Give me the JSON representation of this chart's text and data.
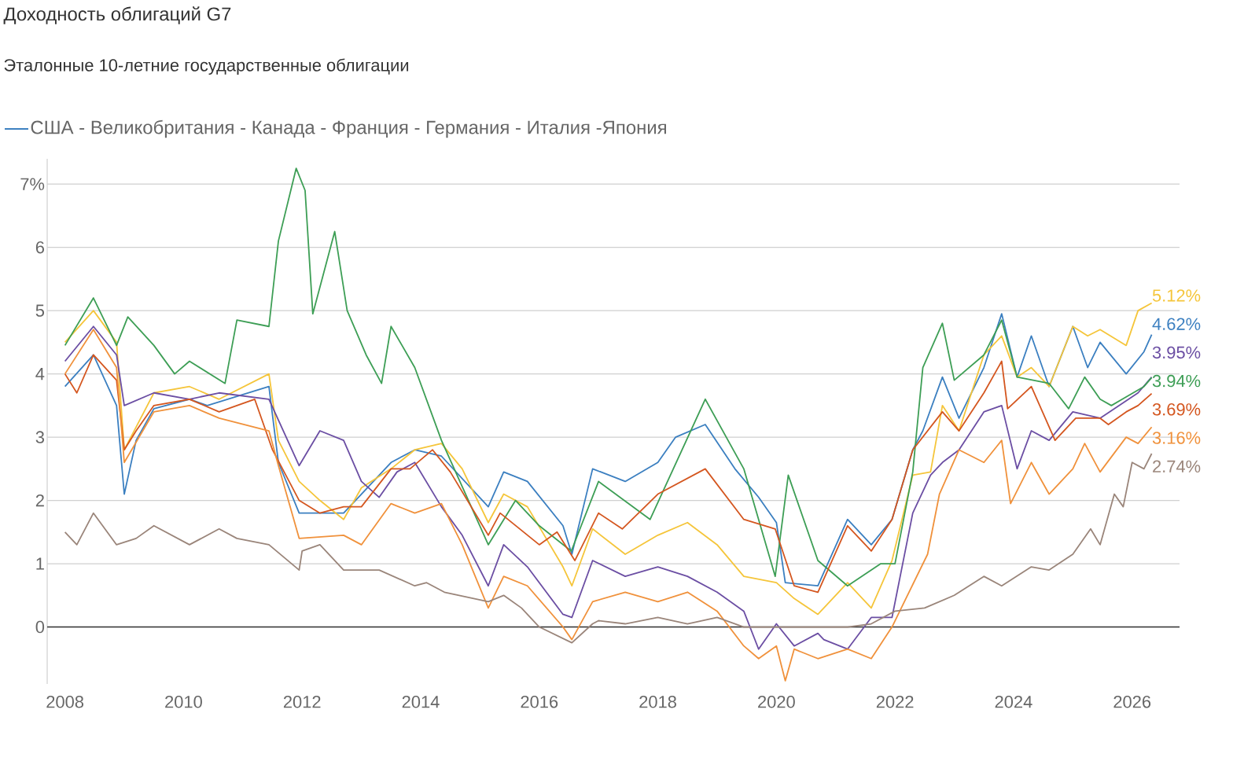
{
  "chart_data": {
    "type": "line",
    "title": "Доходность облигаций G7",
    "subtitle": "Эталонные 10-летние государственные облигации",
    "legend_title": "США - Великобритания - Канада - Франция - Германия - Италия -Япония",
    "xlim": [
      2007.7,
      2026.8
    ],
    "xticks": [
      2008,
      2010,
      2012,
      2014,
      2016,
      2018,
      2020,
      2022,
      2024,
      2026
    ],
    "ylim": [
      -0.9,
      7.4
    ],
    "yticks": [
      0,
      1,
      2,
      3,
      4,
      5,
      6,
      {
        "value": 7,
        "label": "7%"
      }
    ],
    "grid": "y",
    "marker": "none",
    "line_style": "solid",
    "ref_lines": [
      {
        "axis": "y",
        "value": 0,
        "color": "#333333"
      }
    ],
    "series": [
      {
        "color": "#3b7fc0",
        "x": [
          2008,
          2008.48,
          2008.87,
          2009,
          2009.2,
          2009.5,
          2010.1,
          2010.4,
          2011.44,
          2011.6,
          2011.95,
          2012.7,
          2013,
          2013.5,
          2013.9,
          2014.35,
          2015.14,
          2015.4,
          2015.8,
          2016.4,
          2016.55,
          2016.9,
          2017.45,
          2018,
          2018.3,
          2018.8,
          2019.3,
          2019.7,
          2020,
          2020.15,
          2020.7,
          2021.2,
          2021.6,
          2021.95,
          2022.3,
          2022.47,
          2022.8,
          2023.08,
          2023.5,
          2023.8,
          2024.06,
          2024.3,
          2024.6,
          2025,
          2025.25,
          2025.46,
          2025.9,
          2026.2,
          2026.33
        ],
        "values": [
          3.8,
          4.3,
          3.5,
          2.1,
          2.95,
          3.45,
          3.6,
          3.5,
          3.8,
          2.6,
          1.8,
          1.8,
          2.1,
          2.6,
          2.8,
          2.7,
          1.9,
          2.45,
          2.3,
          1.6,
          1.15,
          2.5,
          2.3,
          2.6,
          3.0,
          3.2,
          2.5,
          2.05,
          1.65,
          0.7,
          0.65,
          1.7,
          1.3,
          1.7,
          2.8,
          3.1,
          3.95,
          3.3,
          4.1,
          4.95,
          3.95,
          4.6,
          3.8,
          4.75,
          4.1,
          4.5,
          4.0,
          4.35,
          4.62
        ],
        "value_labels": [
          null,
          null,
          null,
          null,
          null,
          null,
          null,
          null,
          null,
          null,
          null,
          null,
          null,
          null,
          null,
          null,
          null,
          null,
          null,
          null,
          null,
          null,
          null,
          null,
          null,
          null,
          null,
          null,
          null,
          null,
          null,
          null,
          null,
          null,
          null,
          null,
          null,
          null,
          null,
          null,
          null,
          null,
          null,
          null,
          null,
          null,
          null,
          null,
          "4.62%"
        ]
      },
      {
        "color": "#f5c53a",
        "x": [
          2008,
          2008.48,
          2008.87,
          2009,
          2009.5,
          2010.1,
          2010.6,
          2011.44,
          2011.6,
          2011.95,
          2012.3,
          2012.7,
          2013.0,
          2013.5,
          2013.9,
          2014.35,
          2014.7,
          2015.14,
          2015.4,
          2015.8,
          2016.4,
          2016.55,
          2016.9,
          2017.45,
          2018,
          2018.5,
          2019.0,
          2019.45,
          2020,
          2020.3,
          2020.7,
          2021.2,
          2021.6,
          2021.95,
          2022.3,
          2022.6,
          2022.8,
          2023.08,
          2023.5,
          2023.8,
          2024.06,
          2024.3,
          2024.6,
          2025.0,
          2025.25,
          2025.46,
          2025.9,
          2026.1,
          2026.33
        ],
        "values": [
          4.5,
          5.0,
          4.5,
          2.8,
          3.7,
          3.8,
          3.6,
          4.0,
          2.95,
          2.3,
          2.0,
          1.7,
          2.2,
          2.5,
          2.8,
          2.9,
          2.5,
          1.65,
          2.1,
          1.9,
          0.95,
          0.65,
          1.55,
          1.15,
          1.45,
          1.65,
          1.3,
          0.8,
          0.7,
          0.45,
          0.2,
          0.7,
          0.3,
          1.05,
          2.4,
          2.45,
          3.5,
          3.1,
          4.3,
          4.6,
          3.95,
          4.1,
          3.8,
          4.75,
          4.6,
          4.7,
          4.45,
          5.0,
          5.12
        ],
        "value_labels": [
          null,
          null,
          null,
          null,
          null,
          null,
          null,
          null,
          null,
          null,
          null,
          null,
          null,
          null,
          null,
          null,
          null,
          null,
          null,
          null,
          null,
          null,
          null,
          null,
          null,
          null,
          null,
          null,
          null,
          null,
          null,
          null,
          null,
          null,
          null,
          null,
          null,
          null,
          null,
          null,
          null,
          null,
          null,
          null,
          null,
          null,
          null,
          null,
          "5.12%"
        ]
      },
      {
        "color": "#6b4ea3",
        "x": [
          2008,
          2008.48,
          2008.87,
          2009,
          2009.5,
          2010.1,
          2010.6,
          2011.44,
          2011.95,
          2012.3,
          2012.7,
          2013.0,
          2013.3,
          2013.6,
          2013.9,
          2014.35,
          2014.7,
          2015.14,
          2015.4,
          2015.8,
          2016.4,
          2016.55,
          2016.9,
          2017.45,
          2018,
          2018.5,
          2019.0,
          2019.45,
          2019.7,
          2020,
          2020.3,
          2020.7,
          2020.8,
          2021.2,
          2021.6,
          2021.95,
          2022.3,
          2022.6,
          2022.8,
          2023.08,
          2023.5,
          2023.8,
          2024.06,
          2024.3,
          2024.6,
          2025.0,
          2025.46,
          2026.1,
          2026.33
        ],
        "values": [
          4.2,
          4.75,
          4.3,
          3.5,
          3.7,
          3.6,
          3.7,
          3.6,
          2.55,
          3.1,
          2.95,
          2.3,
          2.05,
          2.45,
          2.6,
          1.9,
          1.45,
          0.65,
          1.3,
          0.95,
          0.2,
          0.15,
          1.05,
          0.8,
          0.95,
          0.8,
          0.55,
          0.25,
          -0.35,
          0.05,
          -0.3,
          -0.1,
          -0.2,
          -0.35,
          0.15,
          0.15,
          1.8,
          2.4,
          2.6,
          2.8,
          3.4,
          3.5,
          2.5,
          3.1,
          2.95,
          3.4,
          3.3,
          3.7,
          3.95
        ],
        "value_labels": [
          null,
          null,
          null,
          null,
          null,
          null,
          null,
          null,
          null,
          null,
          null,
          null,
          null,
          null,
          null,
          null,
          null,
          null,
          null,
          null,
          null,
          null,
          null,
          null,
          null,
          null,
          null,
          null,
          null,
          null,
          null,
          null,
          null,
          null,
          null,
          null,
          null,
          null,
          null,
          null,
          null,
          null,
          null,
          null,
          null,
          null,
          null,
          null,
          "3.95%"
        ]
      },
      {
        "color": "#3d9e55",
        "x": [
          2008,
          2008.48,
          2008.87,
          2009.06,
          2009.5,
          2009.85,
          2010.1,
          2010.7,
          2010.9,
          2011.44,
          2011.6,
          2011.9,
          2012.05,
          2012.18,
          2012.55,
          2012.76,
          2013.08,
          2013.34,
          2013.5,
          2013.9,
          2014.35,
          2015.14,
          2015.6,
          2016.0,
          2016.54,
          2017.0,
          2017.87,
          2018.8,
          2019.45,
          2019.98,
          2020.2,
          2020.7,
          2021.2,
          2021.76,
          2022.0,
          2022.3,
          2022.47,
          2022.8,
          2023.0,
          2023.5,
          2023.8,
          2024.06,
          2024.6,
          2024.93,
          2025.2,
          2025.46,
          2025.65,
          2026.2,
          2026.33
        ],
        "values": [
          4.45,
          5.2,
          4.45,
          4.9,
          4.45,
          4.0,
          4.2,
          3.85,
          4.85,
          4.75,
          6.1,
          7.25,
          6.9,
          4.95,
          6.25,
          5.0,
          4.3,
          3.85,
          4.75,
          4.1,
          2.95,
          1.3,
          2.0,
          1.6,
          1.2,
          2.3,
          1.7,
          3.6,
          2.5,
          0.8,
          2.4,
          1.05,
          0.65,
          1.0,
          1.0,
          2.45,
          4.1,
          4.8,
          3.9,
          4.3,
          4.85,
          3.95,
          3.85,
          3.45,
          3.95,
          3.6,
          3.5,
          3.8,
          3.94
        ],
        "value_labels": [
          null,
          null,
          null,
          null,
          null,
          null,
          null,
          null,
          null,
          null,
          null,
          null,
          null,
          null,
          null,
          null,
          null,
          null,
          null,
          null,
          null,
          null,
          null,
          null,
          null,
          null,
          null,
          null,
          null,
          null,
          null,
          null,
          null,
          null,
          null,
          null,
          null,
          null,
          null,
          null,
          null,
          null,
          null,
          null,
          null,
          null,
          null,
          null,
          "3.94%"
        ]
      },
      {
        "color": "#d4561f",
        "x": [
          2008,
          2008.2,
          2008.48,
          2008.87,
          2009,
          2009.2,
          2009.5,
          2010.1,
          2010.6,
          2011.2,
          2011.5,
          2011.95,
          2012.3,
          2012.7,
          2013.0,
          2013.5,
          2013.82,
          2014.2,
          2014.5,
          2015.14,
          2015.34,
          2016.0,
          2016.3,
          2016.6,
          2017.0,
          2017.4,
          2018.0,
          2018.8,
          2019.45,
          2019.98,
          2020.3,
          2020.7,
          2021.2,
          2021.6,
          2021.95,
          2022.3,
          2022.8,
          2023.08,
          2023.5,
          2023.8,
          2023.9,
          2024.3,
          2024.7,
          2025.05,
          2025.46,
          2025.6,
          2025.9,
          2026.1,
          2026.33
        ],
        "values": [
          4.0,
          3.7,
          4.3,
          3.9,
          2.8,
          3.1,
          3.5,
          3.6,
          3.4,
          3.6,
          2.8,
          2.0,
          1.8,
          1.9,
          1.9,
          2.5,
          2.5,
          2.8,
          2.45,
          1.45,
          1.8,
          1.3,
          1.5,
          1.05,
          1.8,
          1.55,
          2.1,
          2.5,
          1.7,
          1.55,
          0.65,
          0.55,
          1.6,
          1.2,
          1.7,
          2.8,
          3.4,
          3.1,
          3.7,
          4.2,
          3.45,
          3.8,
          2.95,
          3.3,
          3.3,
          3.2,
          3.4,
          3.5,
          3.69
        ],
        "value_labels": [
          null,
          null,
          null,
          null,
          null,
          null,
          null,
          null,
          null,
          null,
          null,
          null,
          null,
          null,
          null,
          null,
          null,
          null,
          null,
          null,
          null,
          null,
          null,
          null,
          null,
          null,
          null,
          null,
          null,
          null,
          null,
          null,
          null,
          null,
          null,
          null,
          null,
          null,
          null,
          null,
          null,
          null,
          null,
          null,
          null,
          null,
          null,
          null,
          "3.69%"
        ]
      },
      {
        "color": "#f0913b",
        "x": [
          2008,
          2008.48,
          2008.87,
          2009,
          2009.5,
          2010.1,
          2010.6,
          2011.44,
          2011.6,
          2011.95,
          2012.7,
          2013.0,
          2013.5,
          2013.9,
          2014.35,
          2014.7,
          2015.14,
          2015.4,
          2015.8,
          2016.4,
          2016.55,
          2016.9,
          2017.45,
          2018,
          2018.5,
          2019.0,
          2019.45,
          2019.7,
          2020,
          2020.15,
          2020.3,
          2020.7,
          2021.2,
          2021.6,
          2021.95,
          2022.55,
          2022.75,
          2023.08,
          2023.5,
          2023.8,
          2023.95,
          2024.3,
          2024.6,
          2025.0,
          2025.2,
          2025.46,
          2025.9,
          2026.1,
          2026.33
        ],
        "values": [
          4.0,
          4.7,
          4.1,
          2.6,
          3.4,
          3.5,
          3.3,
          3.1,
          2.55,
          1.4,
          1.45,
          1.3,
          1.95,
          1.8,
          1.95,
          1.3,
          0.3,
          0.8,
          0.65,
          0.0,
          -0.2,
          0.4,
          0.55,
          0.4,
          0.55,
          0.25,
          -0.3,
          -0.5,
          -0.3,
          -0.85,
          -0.35,
          -0.5,
          -0.35,
          -0.5,
          0.0,
          1.15,
          2.1,
          2.8,
          2.6,
          2.95,
          1.95,
          2.6,
          2.1,
          2.5,
          2.9,
          2.45,
          3.0,
          2.9,
          3.16
        ],
        "value_labels": [
          null,
          null,
          null,
          null,
          null,
          null,
          null,
          null,
          null,
          null,
          null,
          null,
          null,
          null,
          null,
          null,
          null,
          null,
          null,
          null,
          null,
          null,
          null,
          null,
          null,
          null,
          null,
          null,
          null,
          null,
          null,
          null,
          null,
          null,
          null,
          null,
          null,
          null,
          null,
          null,
          null,
          null,
          null,
          null,
          null,
          null,
          null,
          null,
          "3.16%"
        ]
      },
      {
        "color": "#9a857a",
        "x": [
          2008,
          2008.2,
          2008.48,
          2008.87,
          2009.2,
          2009.5,
          2010.1,
          2010.6,
          2010.9,
          2011.44,
          2011.95,
          2012.0,
          2012.3,
          2012.7,
          2013.3,
          2013.9,
          2014.1,
          2014.4,
          2015.14,
          2015.4,
          2015.7,
          2016.0,
          2016.55,
          2016.9,
          2017.0,
          2017.45,
          2018,
          2018.5,
          2019.0,
          2019.45,
          2020.0,
          2020.7,
          2021.2,
          2021.6,
          2022.0,
          2022.5,
          2023.0,
          2023.5,
          2023.8,
          2024.3,
          2024.6,
          2025.0,
          2025.3,
          2025.46,
          2025.7,
          2025.85,
          2026.0,
          2026.2,
          2026.33
        ],
        "values": [
          1.5,
          1.3,
          1.8,
          1.3,
          1.4,
          1.6,
          1.3,
          1.55,
          1.4,
          1.3,
          0.9,
          1.2,
          1.3,
          0.9,
          0.9,
          0.65,
          0.7,
          0.55,
          0.4,
          0.5,
          0.3,
          0.0,
          -0.25,
          0.05,
          0.1,
          0.05,
          0.15,
          0.05,
          0.15,
          0.0,
          0.0,
          0.0,
          0.0,
          0.05,
          0.25,
          0.3,
          0.5,
          0.8,
          0.65,
          0.95,
          0.9,
          1.15,
          1.55,
          1.3,
          2.1,
          1.9,
          2.6,
          2.5,
          2.74
        ],
        "value_labels": [
          null,
          null,
          null,
          null,
          null,
          null,
          null,
          null,
          null,
          null,
          null,
          null,
          null,
          null,
          null,
          null,
          null,
          null,
          null,
          null,
          null,
          null,
          null,
          null,
          null,
          null,
          null,
          null,
          null,
          null,
          null,
          null,
          null,
          null,
          null,
          null,
          null,
          null,
          null,
          null,
          null,
          null,
          null,
          null,
          null,
          null,
          null,
          null,
          "2.74%"
        ]
      }
    ]
  }
}
